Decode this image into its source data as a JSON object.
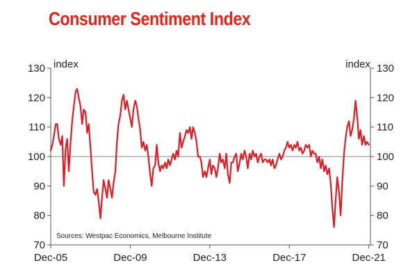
{
  "colors": {
    "title": "#e2231a",
    "series": "#e01b22",
    "axis": "#555555",
    "refline": "#888888"
  },
  "chart_data": {
    "type": "line",
    "title": "Consumer Sentiment Index",
    "ylabel_left": "index",
    "ylabel_right": "index",
    "source": "Sources: Westpac Economics, Melbourne Institute",
    "ylim": [
      70,
      130
    ],
    "yticks": [
      70,
      80,
      90,
      100,
      110,
      120,
      130
    ],
    "xlim": [
      2005.92,
      2022.0
    ],
    "xticks": [
      {
        "label": "Dec-05",
        "x": 2005.92
      },
      {
        "label": "Dec-09",
        "x": 2009.92
      },
      {
        "label": "Dec-13",
        "x": 2013.92
      },
      {
        "label": "Dec-17",
        "x": 2017.92
      },
      {
        "label": "Dec-21",
        "x": 2021.92
      }
    ],
    "reference_line": 100,
    "series": [
      {
        "name": "Consumer Sentiment Index",
        "x": [
          2005.92,
          2006.0,
          2006.08,
          2006.17,
          2006.25,
          2006.33,
          2006.42,
          2006.5,
          2006.58,
          2006.67,
          2006.75,
          2006.83,
          2006.92,
          2007.0,
          2007.08,
          2007.17,
          2007.25,
          2007.33,
          2007.42,
          2007.5,
          2007.58,
          2007.67,
          2007.75,
          2007.83,
          2007.92,
          2008.0,
          2008.08,
          2008.17,
          2008.25,
          2008.33,
          2008.42,
          2008.5,
          2008.58,
          2008.67,
          2008.75,
          2008.83,
          2008.92,
          2009.0,
          2009.08,
          2009.17,
          2009.25,
          2009.33,
          2009.42,
          2009.5,
          2009.58,
          2009.67,
          2009.75,
          2009.83,
          2009.92,
          2010.0,
          2010.08,
          2010.17,
          2010.25,
          2010.33,
          2010.42,
          2010.5,
          2010.58,
          2010.67,
          2010.75,
          2010.83,
          2010.92,
          2011.0,
          2011.08,
          2011.17,
          2011.25,
          2011.33,
          2011.42,
          2011.5,
          2011.58,
          2011.67,
          2011.75,
          2011.83,
          2011.92,
          2012.0,
          2012.08,
          2012.17,
          2012.25,
          2012.33,
          2012.42,
          2012.5,
          2012.58,
          2012.67,
          2012.75,
          2012.83,
          2012.92,
          2013.0,
          2013.08,
          2013.17,
          2013.25,
          2013.33,
          2013.42,
          2013.5,
          2013.58,
          2013.67,
          2013.75,
          2013.83,
          2013.92,
          2014.0,
          2014.08,
          2014.17,
          2014.25,
          2014.33,
          2014.42,
          2014.5,
          2014.58,
          2014.67,
          2014.75,
          2014.83,
          2014.92,
          2015.0,
          2015.08,
          2015.17,
          2015.25,
          2015.33,
          2015.42,
          2015.5,
          2015.58,
          2015.67,
          2015.75,
          2015.83,
          2015.92,
          2016.0,
          2016.08,
          2016.17,
          2016.25,
          2016.33,
          2016.42,
          2016.5,
          2016.58,
          2016.67,
          2016.75,
          2016.83,
          2016.92,
          2017.0,
          2017.08,
          2017.17,
          2017.25,
          2017.33,
          2017.42,
          2017.5,
          2017.58,
          2017.67,
          2017.75,
          2017.83,
          2017.92,
          2018.0,
          2018.08,
          2018.17,
          2018.25,
          2018.33,
          2018.42,
          2018.5,
          2018.58,
          2018.67,
          2018.75,
          2018.83,
          2018.92,
          2019.0,
          2019.08,
          2019.17,
          2019.25,
          2019.33,
          2019.42,
          2019.5,
          2019.58,
          2019.67,
          2019.75,
          2019.83,
          2019.92,
          2020.0,
          2020.08,
          2020.17,
          2020.25,
          2020.33,
          2020.42,
          2020.5,
          2020.58,
          2020.67,
          2020.75,
          2020.83,
          2020.92,
          2021.0,
          2021.08,
          2021.17,
          2021.25,
          2021.33,
          2021.42,
          2021.5,
          2021.58,
          2021.67,
          2021.75,
          2021.83,
          2021.92
        ],
        "values": [
          102,
          104,
          107,
          111,
          111,
          106,
          104,
          107,
          90,
          103,
          106,
          95,
          105,
          112,
          117,
          122,
          123,
          120,
          117,
          111,
          116,
          115,
          108,
          111,
          103,
          95,
          88,
          87,
          89,
          85,
          79,
          86,
          92,
          89,
          86,
          92,
          89,
          86,
          91,
          95,
          105,
          111,
          114,
          119,
          121,
          116,
          119,
          116,
          113,
          110,
          116,
          119,
          117,
          113,
          109,
          103,
          105,
          102,
          104,
          100,
          94,
          90,
          96,
          97,
          104,
          98,
          95,
          97,
          96,
          98,
          96,
          99,
          97,
          99,
          101,
          99,
          102,
          100,
          108,
          103,
          105,
          107,
          109,
          108,
          110,
          106,
          110,
          108,
          105,
          100,
          100,
          98,
          93,
          95,
          93,
          96,
          99,
          94,
          97,
          96,
          93,
          96,
          101,
          98,
          99,
          96,
          101,
          94,
          91,
          98,
          98,
          100,
          101,
          95,
          98,
          101,
          99,
          102,
          100,
          96,
          101,
          99,
          102,
          100,
          101,
          98,
          100,
          101,
          98,
          99,
          99,
          98,
          99,
          97,
          99,
          96,
          97,
          99,
          101,
          99,
          100,
          102,
          103,
          105,
          103,
          104,
          102,
          104,
          103,
          105,
          102,
          103,
          101,
          102,
          104,
          103,
          104,
          100,
          102,
          101,
          101,
          98,
          100,
          96,
          99,
          95,
          97,
          94,
          96,
          91,
          83,
          76,
          85,
          93,
          88,
          80,
          91,
          101,
          106,
          110,
          112,
          107,
          109,
          113,
          119,
          114,
          106,
          109,
          104,
          107,
          104,
          105,
          104
        ]
      }
    ]
  }
}
